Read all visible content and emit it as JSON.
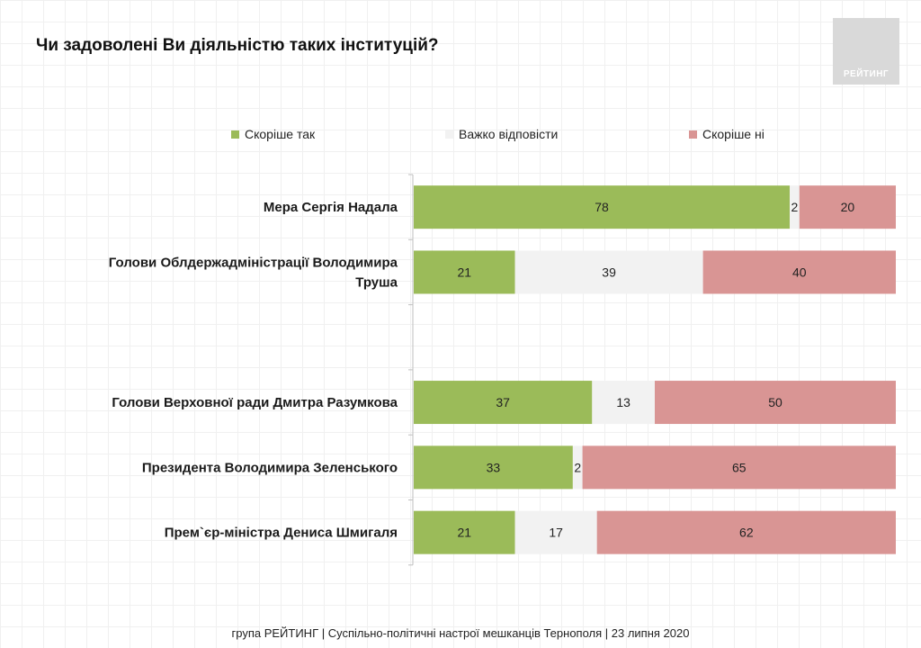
{
  "title": "Чи задоволені Ви діяльністю таких інституцій?",
  "logo_text": "РЕЙТИНГ",
  "footer": "група РЕЙТИНГ | Суспільно-політичні настрої мешканців Тернополя | 23 липня 2020",
  "chart_data": {
    "type": "bar",
    "orientation": "horizontal",
    "stacked": true,
    "xlim": [
      0,
      100
    ],
    "legend_position": "top",
    "categories": [
      "Мера Сергія Надала",
      "Голови Облдержадміністрації Володимира Труша",
      "",
      "Голови Верховної ради Дмитра Разумкова",
      "Президента Володимира Зеленського",
      "Прем`єр-міністра Дениса Шмигаля"
    ],
    "series": [
      {
        "name": "Скоріше так",
        "color": "#9bbb59",
        "values": [
          78,
          21,
          null,
          37,
          33,
          21
        ]
      },
      {
        "name": "Важко відповісти",
        "color": "#f2f2f2",
        "values": [
          2,
          39,
          null,
          13,
          2,
          17
        ]
      },
      {
        "name": "Скоріше ні",
        "color": "#d99594",
        "values": [
          20,
          40,
          null,
          50,
          65,
          62
        ]
      }
    ]
  }
}
